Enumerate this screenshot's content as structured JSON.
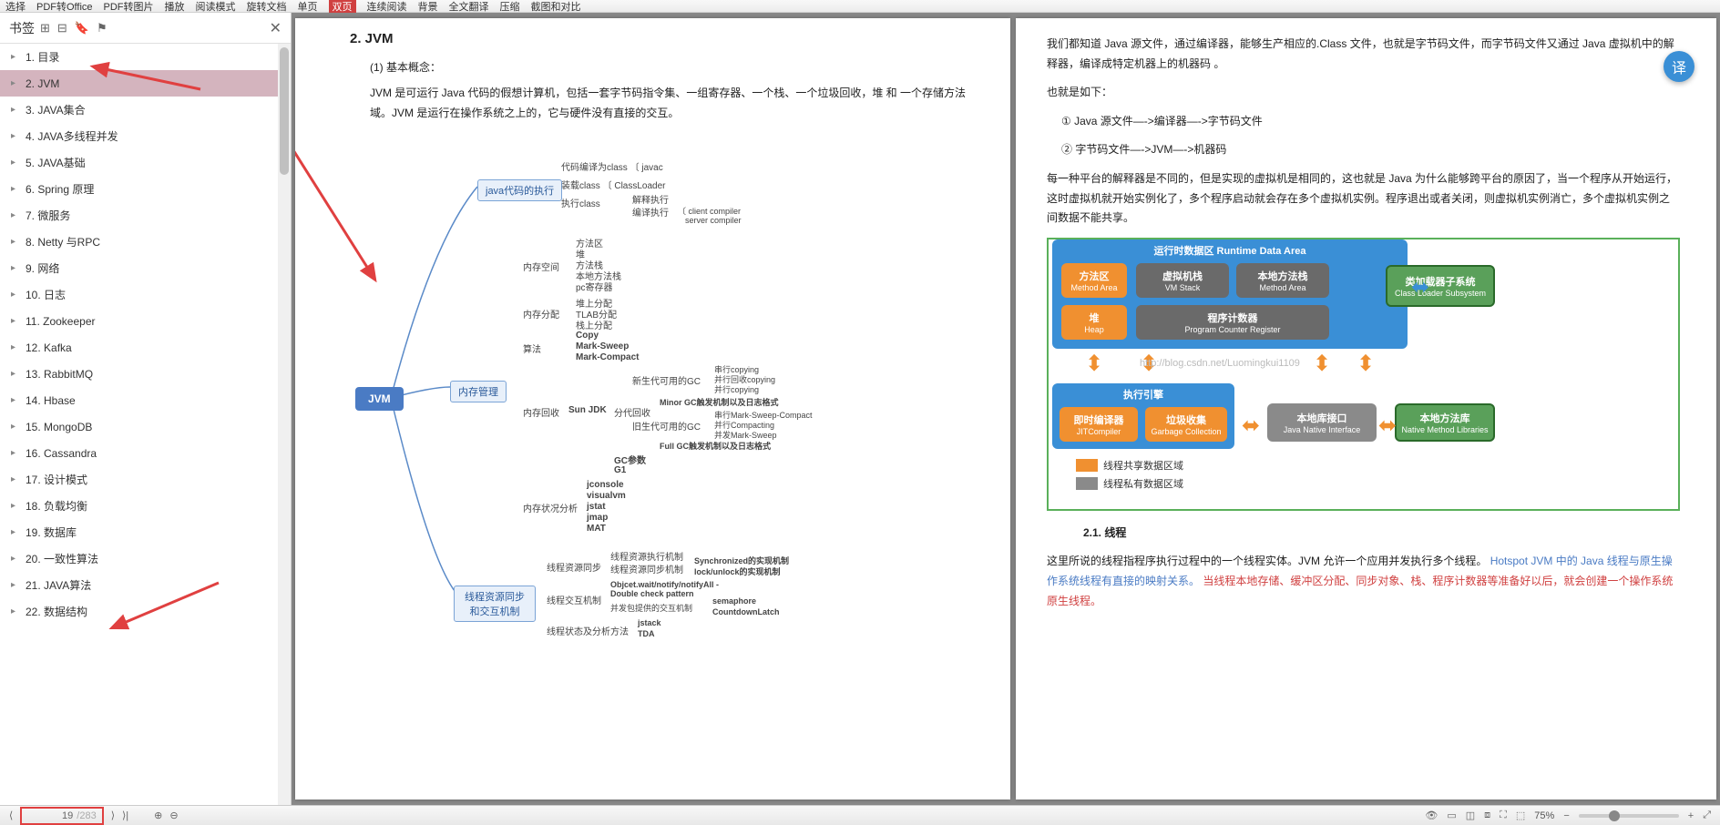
{
  "toolbar": {
    "items": [
      "选择",
      "PDF转Office",
      "PDF转图片",
      "播放",
      "阅读模式",
      "",
      "",
      "",
      "旋转文档",
      "单页",
      "双页",
      "连续阅读",
      "背景",
      "全文翻译",
      "压缩",
      "截图和对比"
    ]
  },
  "sidebar": {
    "title": "书签",
    "items": [
      {
        "label": "1. 目录",
        "selected": false
      },
      {
        "label": "2. JVM",
        "selected": true
      },
      {
        "label": "3. JAVA集合",
        "selected": false
      },
      {
        "label": "4. JAVA多线程并发",
        "selected": false
      },
      {
        "label": "5. JAVA基础",
        "selected": false
      },
      {
        "label": "6. Spring 原理",
        "selected": false
      },
      {
        "label": "7.  微服务",
        "selected": false
      },
      {
        "label": "8. Netty 与RPC",
        "selected": false
      },
      {
        "label": "9. 网络",
        "selected": false
      },
      {
        "label": "10. 日志",
        "selected": false
      },
      {
        "label": "11. Zookeeper",
        "selected": false
      },
      {
        "label": "12. Kafka",
        "selected": false
      },
      {
        "label": "13. RabbitMQ",
        "selected": false
      },
      {
        "label": "14. Hbase",
        "selected": false
      },
      {
        "label": "15. MongoDB",
        "selected": false
      },
      {
        "label": "16. Cassandra",
        "selected": false
      },
      {
        "label": "17. 设计模式",
        "selected": false
      },
      {
        "label": "18. 负载均衡",
        "selected": false
      },
      {
        "label": "19. 数据库",
        "selected": false
      },
      {
        "label": "20. 一致性算法",
        "selected": false
      },
      {
        "label": "21. JAVA算法",
        "selected": false
      },
      {
        "label": "22. 数据结构",
        "selected": false
      }
    ]
  },
  "pageL": {
    "title": "2. JVM",
    "sub1": "(1) 基本概念：",
    "para1": "JVM 是可运行 Java 代码的假想计算机，包括一套字节码指令集、一组寄存器、一个栈、一个垃圾回收，堆 和 一个存储方法域。JVM 是运行在操作系统之上的，它与硬件没有直接的交互。",
    "mm": {
      "root": "JVM",
      "level1": [
        "java代码的执行",
        "内存管理",
        "线程资源同步和交互机制"
      ],
      "exec_children": [
        "代码编译为class",
        "装载class",
        "执行class"
      ],
      "exec_leaf": [
        "javac",
        "ClassLoader",
        "解释执行",
        "编译执行",
        "client compiler",
        "server compiler"
      ],
      "mem_children": [
        "内存空间",
        "内存分配",
        "算法",
        "内存回收",
        "内存状况分析"
      ],
      "mem_space": [
        "方法区",
        "堆",
        "方法栈",
        "本地方法栈",
        "pc寄存器"
      ],
      "mem_alloc": [
        "堆上分配",
        "TLAB分配",
        "栈上分配"
      ],
      "mem_algo": [
        "Copy",
        "Mark-Sweep",
        "Mark-Compact"
      ],
      "mem_gc_root": "Sun JDK",
      "mem_gc": [
        "新生代可用的GC",
        "分代回收",
        "旧生代可用的GC",
        "GC参数",
        "G1"
      ],
      "mem_gc_new": [
        "串行copying",
        "并行回收copying",
        "并行copying"
      ],
      "mem_gc_policy": "Minor GC触发机制以及日志格式",
      "mem_gc_old": [
        "串行Mark-Sweep-Compact",
        "并行Compacting",
        "并发Mark-Sweep"
      ],
      "mem_gc_full": "Full GC触发机制以及日志格式",
      "mem_analysis": [
        "jconsole",
        "visualvm",
        "jstat",
        "jmap",
        "MAT"
      ],
      "thread_children": [
        "线程资源同步",
        "线程交互机制",
        "线程状态及分析方法"
      ],
      "thread_sync": [
        "线程资源执行机制",
        "线程资源同步机制"
      ],
      "thread_sync_leaf": [
        "Synchronized的实现机制",
        "lock/unlock的实现机制"
      ],
      "thread_interact": [
        "Objcet.wait/notify/notifyAll - Double check pattern",
        "并发包提供的交互机制"
      ],
      "thread_interact_leaf": [
        "semaphore",
        "CountdownLatch"
      ],
      "thread_status": [
        "jstack",
        "TDA"
      ]
    }
  },
  "pageR": {
    "para1": "我们都知道 Java 源文件，通过编译器，能够生产相应的.Class 文件，也就是字节码文件，而字节码文件又通过 Java 虚拟机中的解释器，编译成特定机器上的机器码 。",
    "para2": "也就是如下：",
    "step1": "① Java 源文件—->编译器—->字节码文件",
    "step2": "② 字节码文件—->JVM—->机器码",
    "para3": "每一种平台的解释器是不同的，但是实现的虚拟机是相同的，这也就是 Java 为什么能够跨平台的原因了，当一个程序从开始运行，这时虚拟机就开始实例化了，多个程序启动就会存在多个虚拟机实例。程序退出或者关闭，则虚拟机实例消亡，多个虚拟机实例之间数据不能共享。",
    "diagram": {
      "runtime_title_cn": "运行时数据区",
      "runtime_title_en": "Runtime Data Area",
      "method_area_cn": "方法区",
      "method_area_en": "Method Area",
      "vm_stack_cn": "虚拟机栈",
      "vm_stack_en": "VM Stack",
      "native_area_cn": "本地方法栈",
      "native_area_en": "Method Area",
      "heap_cn": "堆",
      "heap_en": "Heap",
      "pc_cn": "程序计数器",
      "pc_en": "Program Counter Register",
      "classloader_cn": "类加载器子系统",
      "classloader_en": "Class Loader Subsystem",
      "engine_cn": "执行引擎",
      "jit_cn": "即时编译器",
      "jit_en": "JITCompiler",
      "gc_cn": "垃圾收集",
      "gc_en": "Garbage Collection",
      "jni_cn": "本地库接口",
      "jni_en": "Java Native Interface",
      "native_lib_cn": "本地方法库",
      "native_lib_en": "Native Method Libraries",
      "legend1": "线程共享数据区域",
      "legend2": "线程私有数据区域",
      "watermark": "http://blog.csdn.net/Luomingkui1109",
      "colors": {
        "blue": "#3a8fd6",
        "orange": "#f09030",
        "gray": "#8a8a8a",
        "darkgray": "#6a6a6a",
        "green": "#5aa05a",
        "border": "#5ab05a"
      }
    },
    "sec21": "2.1. 线程",
    "para4a": "这里所说的线程指程序执行过程中的一个线程实体。JVM 允许一个应用并发执行多个线程。",
    "para4b": "Hotspot JVM 中的 Java 线程与原生操作系统线程有直接的映射关系。",
    "para4c": "当线程本地存储、缓冲区分配、同步对象、栈、程序计数器等准备好以后，就会创建一个操作系统原生线程。"
  },
  "bottom": {
    "page_current": "19",
    "page_total": "/283",
    "zoom": "75%"
  }
}
